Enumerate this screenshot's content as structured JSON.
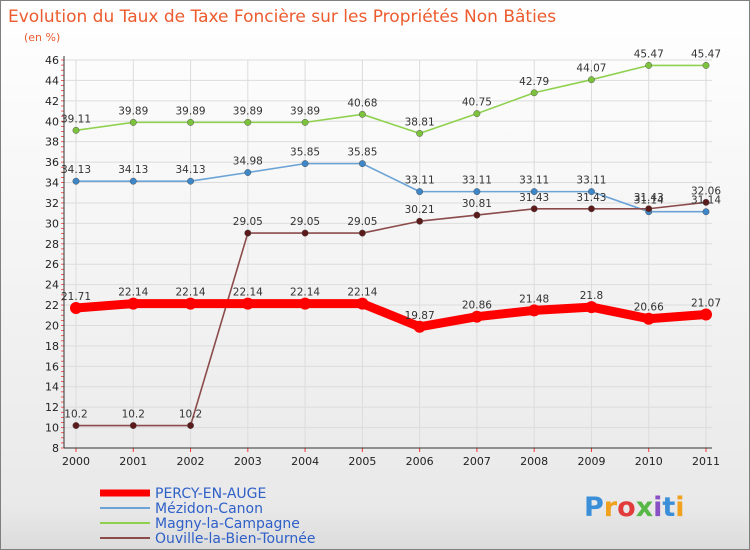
{
  "chart_data": {
    "type": "line",
    "title": "Evolution du Taux de Taxe Foncière sur les Propriétés Non Bâties",
    "ylabel": "(en %)",
    "xlabel": "",
    "x": [
      "2000",
      "2001",
      "2002",
      "2003",
      "2004",
      "2005",
      "2006",
      "2007",
      "2008",
      "2009",
      "2010",
      "2011"
    ],
    "ylim": [
      8,
      46
    ],
    "yticks": [
      8,
      10,
      12,
      14,
      16,
      18,
      20,
      22,
      24,
      26,
      28,
      30,
      32,
      34,
      36,
      38,
      40,
      42,
      44,
      46
    ],
    "grid": true,
    "series": [
      {
        "name": "Magny-la-Campagne",
        "color": "#8fd14f",
        "marker": "#7cc23c",
        "values": [
          39.11,
          39.89,
          39.89,
          39.89,
          39.89,
          40.68,
          38.81,
          40.75,
          42.79,
          44.07,
          45.47,
          45.47
        ],
        "labels": [
          "39.11",
          "39.89",
          "39.89",
          "39.89",
          "39.89",
          "40.68",
          "38.81",
          "40.75",
          "42.79",
          "44.07",
          "45.47",
          "45.47"
        ]
      },
      {
        "name": "Mézidon-Canon",
        "color": "#6ba3d6",
        "marker": "#3d87c9",
        "values": [
          34.13,
          34.13,
          34.13,
          34.98,
          35.85,
          35.85,
          33.11,
          33.11,
          33.11,
          33.11,
          31.14,
          31.14
        ],
        "labels": [
          "34.13",
          "34.13",
          "34.13",
          "34.98",
          "35.85",
          "35.85",
          "33.11",
          "33.11",
          "33.11",
          "33.11",
          "31.14",
          "31.14"
        ]
      },
      {
        "name": "Ouville-la-Bien-Tournée",
        "color": "#8b4b4b",
        "marker": "#5c1a1a",
        "values": [
          10.2,
          10.2,
          10.2,
          29.05,
          29.05,
          29.05,
          30.21,
          30.81,
          31.43,
          31.43,
          31.43,
          32.06
        ],
        "labels": [
          "10.2",
          "10.2",
          "10.2",
          "29.05",
          "29.05",
          "29.05",
          "30.21",
          "30.81",
          "31.43",
          "31.43",
          "31.43",
          "32.06"
        ]
      },
      {
        "name": "PERCY-EN-AUGE",
        "color": "#ff0000",
        "marker": "#ff0000",
        "values": [
          21.71,
          22.14,
          22.14,
          22.14,
          22.14,
          22.14,
          19.87,
          20.86,
          21.48,
          21.8,
          20.66,
          21.07
        ],
        "labels": [
          "21.71",
          "22.14",
          "22.14",
          "22.14",
          "22.14",
          "22.14",
          "19.87",
          "20.86",
          "21.48",
          "21.8",
          "20.66",
          "21.07"
        ]
      }
    ],
    "legend": [
      "PERCY-EN-AUGE",
      "Mézidon-Canon",
      "Magny-la-Campagne",
      "Ouville-la-Bien-Tournée"
    ]
  },
  "logo": {
    "text": "Proxiti",
    "colors": [
      "#3b8ed8",
      "#f0a11d",
      "#e23b3b",
      "#57b847",
      "#8b4fc4",
      "#3b8ed8",
      "#f0a11d"
    ]
  }
}
